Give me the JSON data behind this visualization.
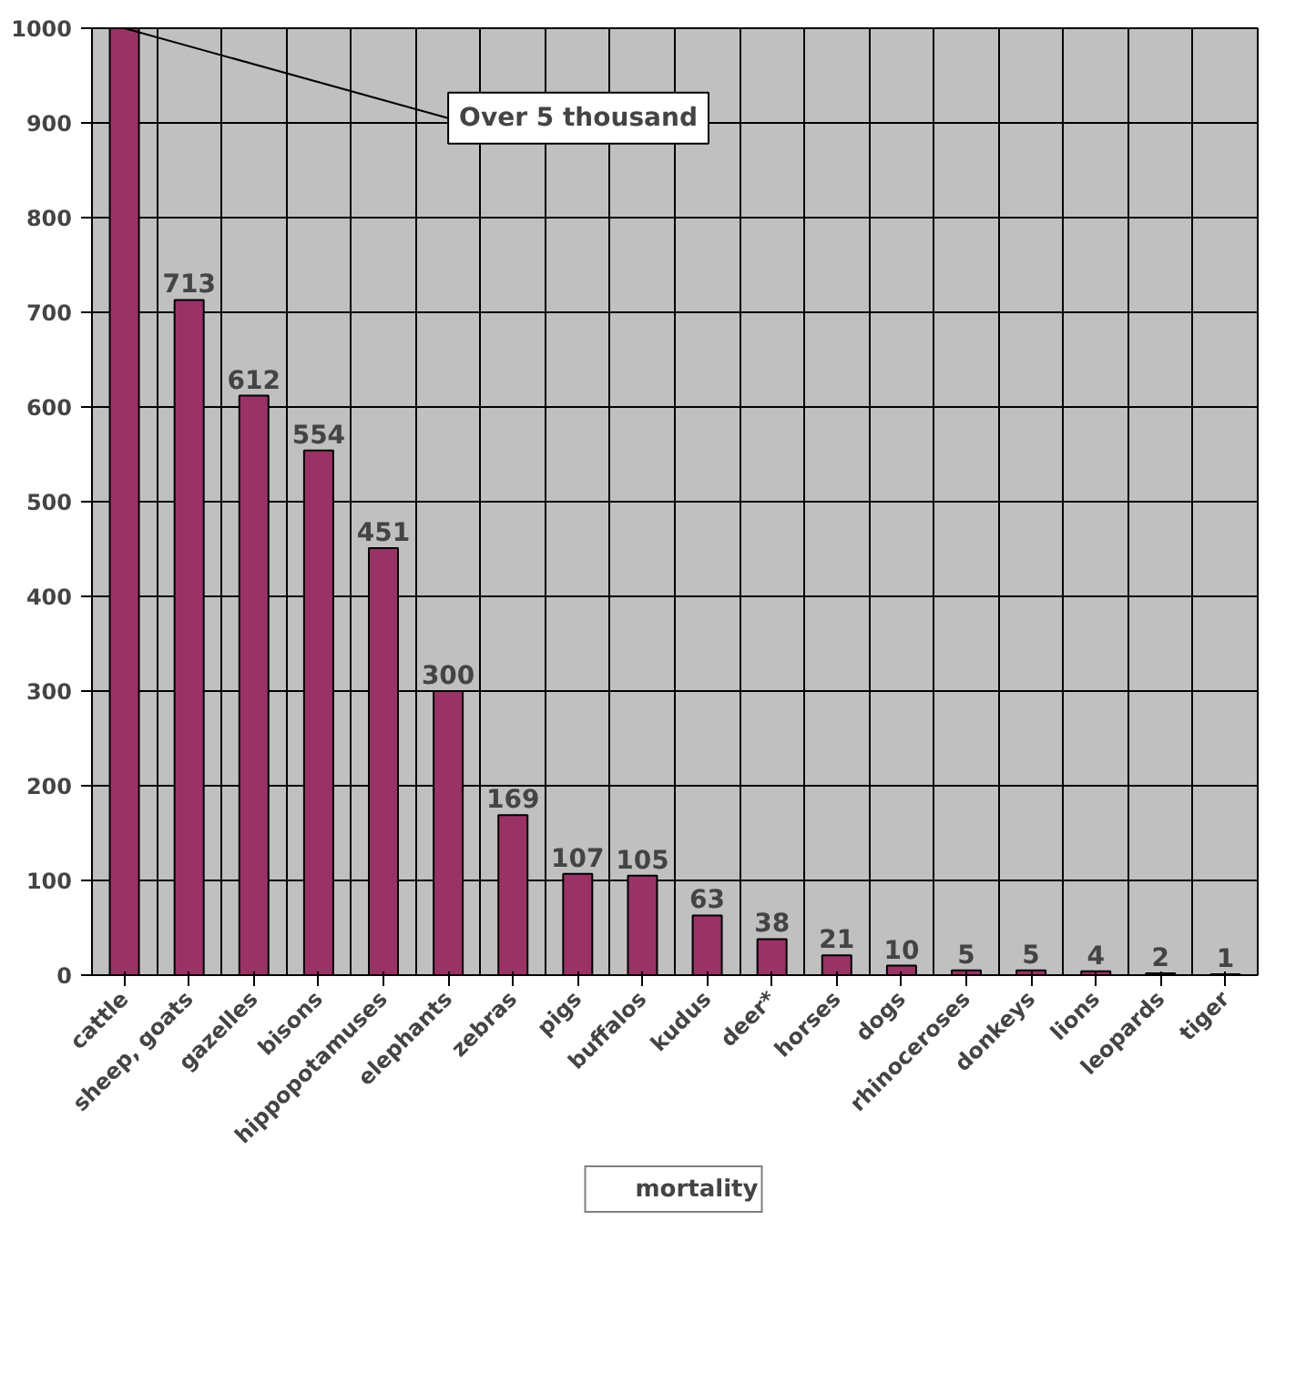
{
  "chart_data": {
    "type": "bar",
    "categories": [
      "cattle",
      "sheep, goats",
      "gazelles",
      "bisons",
      "hippopotamuses",
      "elephants",
      "zebras",
      "pigs",
      "buffalos",
      "kudus",
      "deer*",
      "horses",
      "dogs",
      "rhinoceroses",
      "donkeys",
      "lions",
      "leopards",
      "tiger"
    ],
    "series": [
      {
        "name": "mortality",
        "color": "#993366",
        "values": [
          1000,
          713,
          612,
          554,
          451,
          300,
          169,
          107,
          105,
          63,
          38,
          21,
          10,
          5,
          5,
          4,
          2,
          1
        ],
        "value_labels": [
          null,
          "713",
          "612",
          "554",
          "451",
          "300",
          "169",
          "107",
          "105",
          "63",
          "38",
          "21",
          "10",
          "5",
          "5",
          "4",
          "2",
          "1"
        ]
      }
    ],
    "ylim": [
      0,
      1000
    ],
    "yticks": [
      0,
      100,
      200,
      300,
      400,
      500,
      600,
      700,
      800,
      900,
      1000
    ],
    "grid": true,
    "legend": "bottom",
    "annotations": [
      {
        "text": "Over 5 thousand",
        "x": "cattle",
        "y": 1000
      }
    ]
  }
}
